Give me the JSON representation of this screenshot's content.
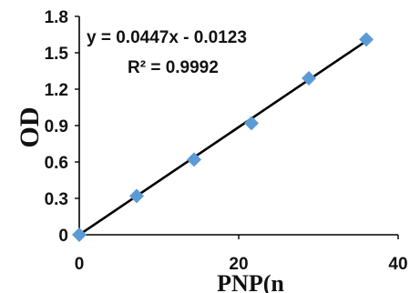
{
  "chart_data": {
    "type": "scatter",
    "ylabel": "OD",
    "xlabel": "PNP(n",
    "xlim": [
      0,
      40
    ],
    "ylim": [
      0,
      1.8
    ],
    "xticks": [
      "0",
      "20",
      "40"
    ],
    "yticks": [
      "0",
      "0.3",
      "0.6",
      "0.9",
      "1.2",
      "1.5",
      "1.8"
    ],
    "grid": false,
    "marker_color": "#5B9BD5",
    "line_color": "#000000",
    "points": [
      {
        "x": 0,
        "y": 0.0
      },
      {
        "x": 7.2,
        "y": 0.32
      },
      {
        "x": 14.4,
        "y": 0.62
      },
      {
        "x": 21.6,
        "y": 0.92
      },
      {
        "x": 28.8,
        "y": 1.29
      },
      {
        "x": 36,
        "y": 1.61
      }
    ],
    "trendline": {
      "slope": 0.0447,
      "intercept": -0.0123,
      "x_range": [
        0,
        36
      ]
    },
    "annotations": {
      "equation": "y = 0.0447x - 0.0123",
      "r_squared": "R² = 0.9992"
    }
  }
}
